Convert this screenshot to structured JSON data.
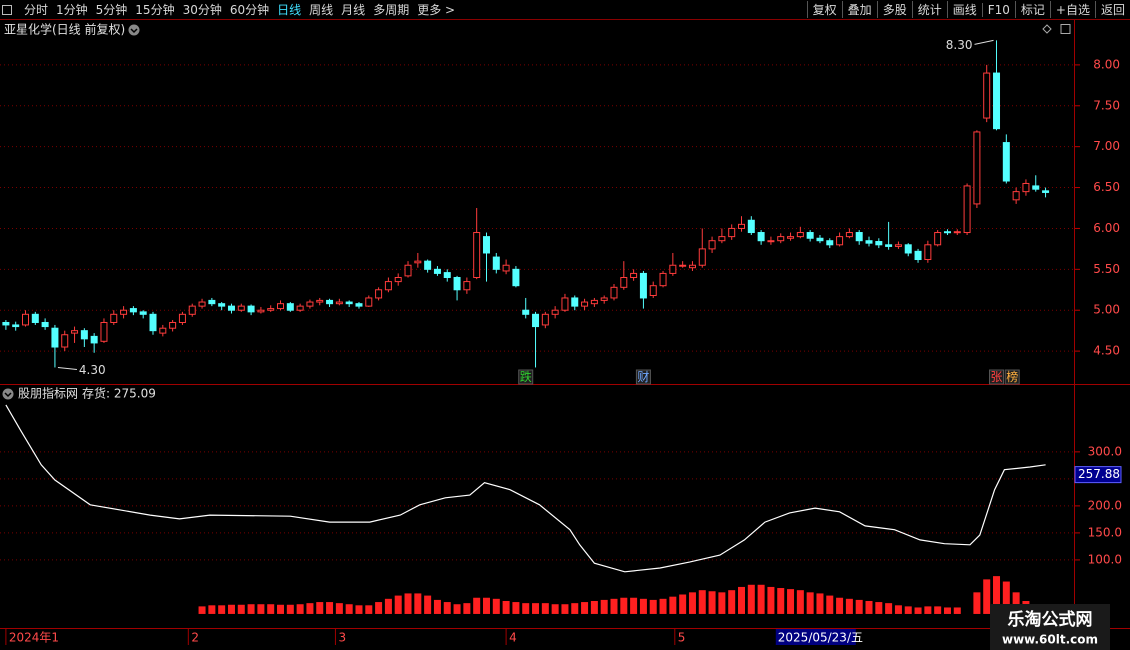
{
  "toolbar": {
    "left": [
      "分时",
      "1分钟",
      "5分钟",
      "15分钟",
      "30分钟",
      "60分钟",
      "日线",
      "周线",
      "月线",
      "多周期",
      "更多 >"
    ],
    "right": [
      "复权",
      "叠加",
      "多股",
      "统计",
      "画线",
      "F10",
      "标记",
      "+自选",
      "返回"
    ],
    "active": "日线"
  },
  "watermark": {
    "title": "乐淘公式网",
    "url": "www.60lt.com"
  },
  "chart_data": [
    {
      "type": "candlestick",
      "title": "亚星化学(日线 前复权)",
      "up_color": "#ff3c3c",
      "down_color": "#54ffff",
      "grid": true,
      "xlim": [
        -0.6,
        108.9
      ],
      "ylim": [
        4.11,
        8.5
      ],
      "yticks": [
        {
          "value": 4.5,
          "label": "4.50"
        },
        {
          "value": 5,
          "label": "5.00"
        },
        {
          "value": 5.5,
          "label": "5.50"
        },
        {
          "value": 6,
          "label": "6.00"
        },
        {
          "value": 6.5,
          "label": "6.50"
        },
        {
          "value": 7,
          "label": "7.00"
        },
        {
          "value": 7.5,
          "label": "7.50"
        },
        {
          "value": 8,
          "label": "8.00"
        }
      ],
      "xticks": [
        {
          "value": 0,
          "label": "2024年1"
        },
        {
          "value": 18.6,
          "label": "2"
        },
        {
          "value": 33.6,
          "label": "3"
        },
        {
          "value": 51,
          "label": "4"
        },
        {
          "value": 68.2,
          "label": "5"
        }
      ],
      "cursor": {
        "x": 78.7,
        "label": "2025/05/23/五"
      },
      "annotations": [
        {
          "x": 101,
          "value": 8.3,
          "label": "8.30",
          "side": "left"
        },
        {
          "x": 5,
          "value": 4.3,
          "label": "4.30",
          "side": "right"
        }
      ],
      "events": [
        {
          "x": 53,
          "label": "跌",
          "color": "#30d030"
        },
        {
          "x": 65,
          "label": "财",
          "color": "#70a8ff"
        },
        {
          "x": 101,
          "label": "张",
          "color": "#ff4040"
        },
        {
          "x": 102.6,
          "label": "榜",
          "color": "#ffb040"
        }
      ],
      "candles": [
        [
          4.85,
          4.88,
          4.76,
          4.82
        ],
        [
          4.82,
          4.86,
          4.75,
          4.8
        ],
        [
          4.82,
          5.0,
          4.8,
          4.95
        ],
        [
          4.95,
          4.98,
          4.82,
          4.85
        ],
        [
          4.85,
          4.9,
          4.76,
          4.8
        ],
        [
          4.78,
          4.82,
          4.3,
          4.55
        ],
        [
          4.55,
          4.75,
          4.5,
          4.7
        ],
        [
          4.72,
          4.8,
          4.6,
          4.75
        ],
        [
          4.75,
          4.78,
          4.55,
          4.65
        ],
        [
          4.68,
          4.72,
          4.48,
          4.6
        ],
        [
          4.62,
          4.9,
          4.6,
          4.85
        ],
        [
          4.85,
          5.0,
          4.82,
          4.95
        ],
        [
          4.95,
          5.05,
          4.9,
          5.0
        ],
        [
          5.02,
          5.05,
          4.94,
          4.98
        ],
        [
          4.98,
          5.0,
          4.9,
          4.95
        ],
        [
          4.95,
          4.98,
          4.7,
          4.75
        ],
        [
          4.72,
          4.82,
          4.68,
          4.78
        ],
        [
          4.78,
          4.88,
          4.74,
          4.85
        ],
        [
          4.85,
          4.98,
          4.82,
          4.95
        ],
        [
          4.95,
          5.08,
          4.92,
          5.05
        ],
        [
          5.05,
          5.14,
          5.02,
          5.1
        ],
        [
          5.12,
          5.15,
          5.05,
          5.08
        ],
        [
          5.08,
          5.1,
          5.0,
          5.05
        ],
        [
          5.05,
          5.08,
          4.96,
          5.0
        ],
        [
          5.0,
          5.08,
          4.98,
          5.05
        ],
        [
          5.05,
          5.07,
          4.94,
          4.98
        ],
        [
          4.98,
          5.04,
          4.96,
          5.0
        ],
        [
          5.0,
          5.06,
          4.98,
          5.02
        ],
        [
          5.02,
          5.12,
          5.0,
          5.08
        ],
        [
          5.08,
          5.1,
          4.98,
          5.0
        ],
        [
          5.0,
          5.08,
          4.98,
          5.05
        ],
        [
          5.05,
          5.13,
          5.02,
          5.1
        ],
        [
          5.1,
          5.15,
          5.06,
          5.12
        ],
        [
          5.12,
          5.14,
          5.04,
          5.08
        ],
        [
          5.08,
          5.14,
          5.06,
          5.1
        ],
        [
          5.1,
          5.12,
          5.04,
          5.08
        ],
        [
          5.08,
          5.1,
          5.02,
          5.05
        ],
        [
          5.05,
          5.18,
          5.04,
          5.15
        ],
        [
          5.15,
          5.28,
          5.12,
          5.25
        ],
        [
          5.25,
          5.4,
          5.22,
          5.35
        ],
        [
          5.35,
          5.45,
          5.3,
          5.4
        ],
        [
          5.42,
          5.6,
          5.4,
          5.55
        ],
        [
          5.58,
          5.7,
          5.52,
          5.6
        ],
        [
          5.6,
          5.62,
          5.46,
          5.5
        ],
        [
          5.5,
          5.54,
          5.42,
          5.45
        ],
        [
          5.46,
          5.5,
          5.35,
          5.4
        ],
        [
          5.4,
          5.42,
          5.12,
          5.25
        ],
        [
          5.25,
          5.4,
          5.2,
          5.35
        ],
        [
          5.4,
          6.25,
          5.38,
          5.95
        ],
        [
          5.9,
          5.95,
          5.35,
          5.7
        ],
        [
          5.65,
          5.7,
          5.45,
          5.5
        ],
        [
          5.48,
          5.62,
          5.44,
          5.55
        ],
        [
          5.5,
          5.54,
          5.28,
          5.3
        ],
        [
          5.0,
          5.15,
          4.9,
          4.95
        ],
        [
          4.95,
          4.98,
          4.3,
          4.8
        ],
        [
          4.82,
          4.98,
          4.78,
          4.95
        ],
        [
          4.95,
          5.05,
          4.9,
          5.0
        ],
        [
          5.0,
          5.2,
          4.98,
          5.15
        ],
        [
          5.15,
          5.18,
          5.0,
          5.05
        ],
        [
          5.05,
          5.14,
          5.0,
          5.1
        ],
        [
          5.08,
          5.15,
          5.04,
          5.12
        ],
        [
          5.12,
          5.18,
          5.08,
          5.15
        ],
        [
          5.15,
          5.32,
          5.12,
          5.28
        ],
        [
          5.28,
          5.6,
          5.25,
          5.4
        ],
        [
          5.4,
          5.5,
          5.36,
          5.45
        ],
        [
          5.45,
          5.48,
          5.02,
          5.15
        ],
        [
          5.18,
          5.35,
          5.15,
          5.3
        ],
        [
          5.3,
          5.48,
          5.28,
          5.45
        ],
        [
          5.45,
          5.7,
          5.42,
          5.55
        ],
        [
          5.55,
          5.6,
          5.52,
          5.55
        ],
        [
          5.52,
          5.6,
          5.48,
          5.55
        ],
        [
          5.55,
          6.0,
          5.52,
          5.75
        ],
        [
          5.75,
          5.9,
          5.7,
          5.85
        ],
        [
          5.85,
          6.0,
          5.82,
          5.9
        ],
        [
          5.9,
          6.05,
          5.86,
          6.0
        ],
        [
          6.0,
          6.15,
          5.96,
          6.05
        ],
        [
          6.1,
          6.15,
          5.92,
          5.95
        ],
        [
          5.95,
          5.98,
          5.8,
          5.85
        ],
        [
          5.85,
          5.9,
          5.8,
          5.85
        ],
        [
          5.85,
          5.94,
          5.82,
          5.9
        ],
        [
          5.88,
          5.95,
          5.85,
          5.9
        ],
        [
          5.9,
          6.02,
          5.88,
          5.95
        ],
        [
          5.95,
          5.98,
          5.84,
          5.88
        ],
        [
          5.88,
          5.92,
          5.82,
          5.85
        ],
        [
          5.85,
          5.88,
          5.76,
          5.8
        ],
        [
          5.8,
          5.95,
          5.78,
          5.9
        ],
        [
          5.9,
          6.0,
          5.88,
          5.95
        ],
        [
          5.95,
          5.98,
          5.8,
          5.85
        ],
        [
          5.85,
          5.9,
          5.78,
          5.82
        ],
        [
          5.84,
          5.88,
          5.76,
          5.8
        ],
        [
          5.8,
          6.08,
          5.74,
          5.78
        ],
        [
          5.78,
          5.84,
          5.75,
          5.8
        ],
        [
          5.8,
          5.82,
          5.66,
          5.7
        ],
        [
          5.72,
          5.75,
          5.58,
          5.62
        ],
        [
          5.62,
          5.85,
          5.58,
          5.8
        ],
        [
          5.8,
          5.98,
          5.78,
          5.95
        ],
        [
          5.96,
          5.99,
          5.92,
          5.95
        ],
        [
          5.95,
          5.99,
          5.92,
          5.96
        ],
        [
          5.95,
          6.55,
          5.92,
          6.52
        ],
        [
          6.3,
          7.2,
          6.25,
          7.18
        ],
        [
          7.35,
          8.0,
          7.3,
          7.9
        ],
        [
          7.9,
          8.3,
          7.2,
          7.22
        ],
        [
          7.05,
          7.15,
          6.55,
          6.58
        ],
        [
          6.35,
          6.5,
          6.3,
          6.45
        ],
        [
          6.45,
          6.6,
          6.4,
          6.55
        ],
        [
          6.52,
          6.65,
          6.45,
          6.48
        ],
        [
          6.46,
          6.5,
          6.38,
          6.44
        ]
      ]
    },
    {
      "type": "line",
      "title": "股朋指标网",
      "legend": "存货: 275.09",
      "xlim": [
        -0.6,
        108.9
      ],
      "ylim": [
        -26,
        396
      ],
      "grid": true,
      "yticks": [
        {
          "value": 100,
          "label": "100.0"
        },
        {
          "value": 150,
          "label": "150.0"
        },
        {
          "value": 200,
          "label": "200.0"
        },
        {
          "value": 250,
          "label": "250.0"
        },
        {
          "value": 300,
          "label": "300.0"
        }
      ],
      "current": 257.88,
      "series": [
        {
          "color": "#ffffff",
          "x": [
            0,
            1.5,
            3.6,
            5,
            8.6,
            14.7,
            17.7,
            20.8,
            29,
            33,
            37.1,
            40.2,
            42.2,
            44.8,
            47.3,
            48.8,
            51.4,
            54.4,
            57.5,
            58.5,
            60,
            63.1,
            66.7,
            69.7,
            72.8,
            75.3,
            77.4,
            79.9,
            82.5,
            85,
            87.6,
            90.6,
            93.2,
            95.7,
            98.3,
            99.3,
            100.8,
            101.8,
            104.4,
            106
          ],
          "values": [
            387,
            340,
            276,
            248,
            202,
            183,
            176,
            183,
            181,
            170,
            170,
            183,
            202,
            215,
            220,
            243,
            230,
            202,
            156,
            128,
            94,
            78,
            85,
            96,
            109,
            137,
            170,
            187,
            196,
            189,
            163,
            156,
            137,
            130,
            128,
            146,
            230,
            267,
            272,
            276
          ]
        }
      ],
      "bars": {
        "color": "#ff2020",
        "values": [
          null,
          null,
          null,
          null,
          null,
          null,
          null,
          null,
          null,
          null,
          null,
          null,
          null,
          null,
          null,
          null,
          null,
          null,
          null,
          null,
          14,
          16,
          16,
          17,
          17,
          18,
          18,
          18,
          17,
          17,
          18,
          20,
          22,
          22,
          20,
          18,
          16,
          16,
          22,
          28,
          34,
          38,
          38,
          34,
          26,
          22,
          18,
          20,
          30,
          30,
          28,
          24,
          22,
          20,
          20,
          20,
          18,
          18,
          20,
          22,
          24,
          26,
          28,
          30,
          30,
          28,
          26,
          28,
          32,
          36,
          40,
          44,
          42,
          40,
          44,
          50,
          54,
          54,
          50,
          48,
          46,
          44,
          40,
          38,
          34,
          30,
          28,
          26,
          24,
          22,
          20,
          16,
          14,
          12,
          14,
          14,
          12,
          12,
          null,
          40,
          64,
          70,
          60,
          40,
          24,
          12,
          6
        ]
      }
    }
  ]
}
